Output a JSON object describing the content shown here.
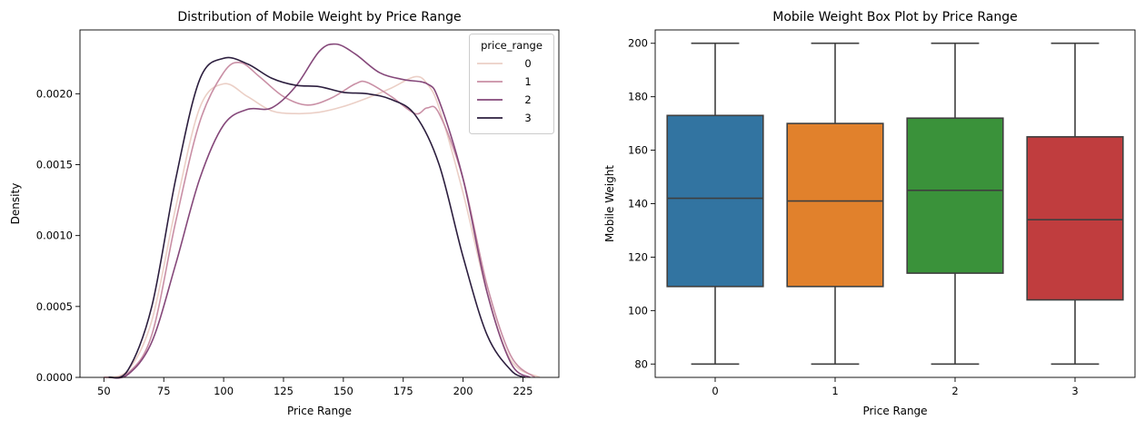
{
  "chart_data": [
    {
      "type": "line",
      "subtype": "kde",
      "title": "Distribution of Mobile Weight by Price Range",
      "xlabel": "Price Range",
      "ylabel": "Density",
      "xlim": [
        40,
        240
      ],
      "ylim": [
        0,
        0.00245
      ],
      "xticks": [
        50,
        75,
        100,
        125,
        150,
        175,
        200,
        225
      ],
      "yticks": [
        0.0,
        0.0005,
        0.001,
        0.0015,
        0.002
      ],
      "ytick_labels": [
        "0.0000",
        "0.0005",
        "0.0010",
        "0.0015",
        "0.0020"
      ],
      "legend": {
        "title": "price_range",
        "position": "top-right"
      },
      "series": [
        {
          "name": "0",
          "color": "#ebcfc6",
          "points": [
            [
              50,
              0.0
            ],
            [
              60,
              5e-05
            ],
            [
              70,
              0.0004
            ],
            [
              80,
              0.0012
            ],
            [
              90,
              0.0019
            ],
            [
              100,
              0.00207
            ],
            [
              110,
              0.00198
            ],
            [
              120,
              0.00188
            ],
            [
              130,
              0.00186
            ],
            [
              140,
              0.00187
            ],
            [
              150,
              0.00191
            ],
            [
              160,
              0.00197
            ],
            [
              170,
              0.00204
            ],
            [
              180,
              0.00212
            ],
            [
              185,
              0.00207
            ],
            [
              190,
              0.0019
            ],
            [
              200,
              0.0013
            ],
            [
              210,
              0.0006
            ],
            [
              220,
              0.00012
            ],
            [
              232,
              0.0
            ]
          ]
        },
        {
          "name": "1",
          "color": "#c98fa5",
          "points": [
            [
              50,
              0.0
            ],
            [
              60,
              3e-05
            ],
            [
              70,
              0.0003
            ],
            [
              80,
              0.0011
            ],
            [
              90,
              0.0018
            ],
            [
              100,
              0.00215
            ],
            [
              107,
              0.00222
            ],
            [
              115,
              0.00212
            ],
            [
              125,
              0.00198
            ],
            [
              135,
              0.00192
            ],
            [
              145,
              0.00197
            ],
            [
              155,
              0.00207
            ],
            [
              160,
              0.00208
            ],
            [
              170,
              0.00198
            ],
            [
              180,
              0.00186
            ],
            [
              185,
              0.0019
            ],
            [
              190,
              0.00186
            ],
            [
              200,
              0.0014
            ],
            [
              210,
              0.00065
            ],
            [
              220,
              0.00015
            ],
            [
              230,
              0.0
            ]
          ]
        },
        {
          "name": "2",
          "color": "#85487a",
          "points": [
            [
              52,
              0.0
            ],
            [
              60,
              2e-05
            ],
            [
              70,
              0.00025
            ],
            [
              80,
              0.0008
            ],
            [
              90,
              0.0014
            ],
            [
              100,
              0.00178
            ],
            [
              110,
              0.00189
            ],
            [
              120,
              0.0019
            ],
            [
              130,
              0.00205
            ],
            [
              140,
              0.0023
            ],
            [
              147,
              0.00235
            ],
            [
              155,
              0.00228
            ],
            [
              165,
              0.00215
            ],
            [
              175,
              0.0021
            ],
            [
              185,
              0.00207
            ],
            [
              190,
              0.00195
            ],
            [
              200,
              0.0014
            ],
            [
              210,
              0.0006
            ],
            [
              220,
              0.0001
            ],
            [
              228,
              0.0
            ]
          ]
        },
        {
          "name": "3",
          "color": "#2c1e3e",
          "points": [
            [
              52,
              0.0
            ],
            [
              60,
              5e-05
            ],
            [
              70,
              0.0005
            ],
            [
              80,
              0.0014
            ],
            [
              90,
              0.0021
            ],
            [
              100,
              0.00225
            ],
            [
              110,
              0.00221
            ],
            [
              120,
              0.00211
            ],
            [
              130,
              0.00206
            ],
            [
              140,
              0.00205
            ],
            [
              150,
              0.00201
            ],
            [
              160,
              0.002
            ],
            [
              170,
              0.00196
            ],
            [
              180,
              0.00185
            ],
            [
              190,
              0.0015
            ],
            [
              200,
              0.00085
            ],
            [
              210,
              0.0003
            ],
            [
              220,
              5e-05
            ],
            [
              226,
              0.0
            ]
          ]
        }
      ]
    },
    {
      "type": "box",
      "title": "Mobile Weight Box Plot by Price Range",
      "xlabel": "Price Range",
      "ylabel": "Mobile Weight",
      "ylim": [
        75,
        205
      ],
      "yticks": [
        80,
        100,
        120,
        140,
        160,
        180,
        200
      ],
      "categories": [
        "0",
        "1",
        "2",
        "3"
      ],
      "boxes": [
        {
          "category": "0",
          "min": 80,
          "q1": 109,
          "median": 142,
          "q3": 173,
          "max": 200,
          "color": "#3274a1"
        },
        {
          "category": "1",
          "min": 80,
          "q1": 109,
          "median": 141,
          "q3": 170,
          "max": 200,
          "color": "#e1812c"
        },
        {
          "category": "2",
          "min": 80,
          "q1": 114,
          "median": 145,
          "q3": 172,
          "max": 200,
          "color": "#3a923a"
        },
        {
          "category": "3",
          "min": 80,
          "q1": 104,
          "median": 134,
          "q3": 165,
          "max": 200,
          "color": "#c03d3e"
        }
      ]
    }
  ]
}
